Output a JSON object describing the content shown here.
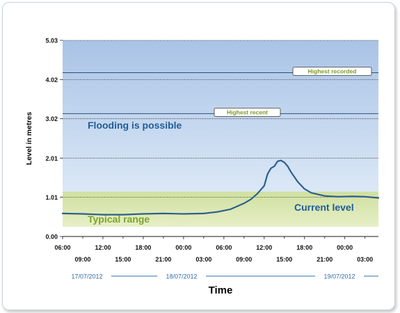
{
  "chart_data": {
    "type": "area",
    "title": "",
    "xlabel": "Time",
    "ylabel": "Level in metres",
    "ylim": [
      0.0,
      5.03
    ],
    "yticks": [
      "0.00",
      "1.01",
      "2.01",
      "3.02",
      "4.02",
      "5.03"
    ],
    "xlim": [
      "2012-07-17T06:00",
      "2012-07-19T05:00"
    ],
    "x_tick_labels_row1": [
      "06:00",
      "12:00",
      "18:00",
      "00:00",
      "06:00",
      "12:00",
      "18:00",
      "00:00"
    ],
    "x_tick_labels_row2": [
      "09:00",
      "15:00",
      "21:00",
      "03:00",
      "09:00",
      "15:00",
      "21:00",
      "03:00"
    ],
    "date_labels": [
      "17/07/2012",
      "18/07/2012",
      "19/07/2012"
    ],
    "grid": true,
    "bands": [
      {
        "name": "Flooding is possible",
        "from": 1.15,
        "to": 5.03,
        "color": "#b4cdeb",
        "label_color": "#1f5c99"
      },
      {
        "name": "Typical range",
        "from": 0.25,
        "to": 1.15,
        "color": "#d6e6a3",
        "label_color": "#7ea42c"
      }
    ],
    "reference_lines": [
      {
        "name": "Highest recorded",
        "value": 4.2
      },
      {
        "name": "Highest recent",
        "value": 3.15
      }
    ],
    "series": [
      {
        "name": "Current level",
        "color": "#2e5f8c",
        "x": [
          "2012-07-17T06:00",
          "2012-07-17T09:00",
          "2012-07-17T12:00",
          "2012-07-17T15:00",
          "2012-07-17T18:00",
          "2012-07-17T21:00",
          "2012-07-18T00:00",
          "2012-07-18T03:00",
          "2012-07-18T05:00",
          "2012-07-18T07:00",
          "2012-07-18T09:00",
          "2012-07-18T10:00",
          "2012-07-18T11:00",
          "2012-07-18T12:00",
          "2012-07-18T12:30",
          "2012-07-18T13:00",
          "2012-07-18T13:30",
          "2012-07-18T14:00",
          "2012-07-18T14:30",
          "2012-07-18T15:00",
          "2012-07-18T15:30",
          "2012-07-18T16:00",
          "2012-07-18T17:00",
          "2012-07-18T18:00",
          "2012-07-18T19:00",
          "2012-07-18T21:00",
          "2012-07-18T23:00",
          "2012-07-19T01:00",
          "2012-07-19T03:00",
          "2012-07-19T05:00"
        ],
        "y": [
          0.59,
          0.58,
          0.56,
          0.56,
          0.58,
          0.59,
          0.58,
          0.59,
          0.63,
          0.7,
          0.85,
          0.95,
          1.1,
          1.3,
          1.6,
          1.75,
          1.8,
          1.93,
          1.95,
          1.9,
          1.8,
          1.65,
          1.4,
          1.22,
          1.12,
          1.04,
          1.02,
          1.03,
          1.02,
          0.99
        ]
      }
    ]
  }
}
